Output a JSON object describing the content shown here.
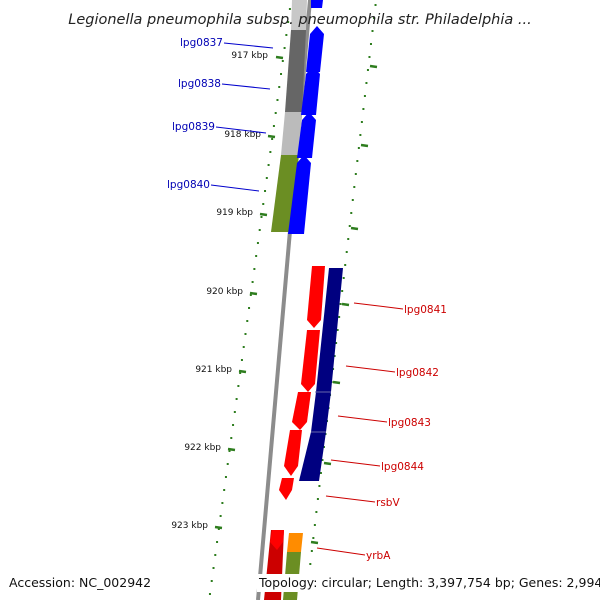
{
  "title": "Legionella pneumophila subsp. pneumophila str. Philadelphia ...",
  "accession": "Accession: NC_002942",
  "topology": "Topology: circular; Length: 3,397,754 bp; Genes: 2,994",
  "colors": {
    "forward_gene": "#0000ff",
    "reverse_gene": "#ff0000",
    "reverse_gene_dark": "#000080",
    "gc_dark": "#666666",
    "gc_light": "#bbbbbb",
    "gc_green": "#6b8e23",
    "gc_orange": "#ff8c00",
    "tick_green": "#2e7d1e",
    "backbone": "#888888"
  },
  "kbp_ticks": [
    "917 kbp",
    "918 kbp",
    "919 kbp",
    "920 kbp",
    "921 kbp",
    "922 kbp",
    "923 kbp"
  ],
  "genes_left": [
    "lpg0837",
    "lpg0838",
    "lpg0839",
    "lpg0840"
  ],
  "genes_right": [
    "lpg0841",
    "lpg0842",
    "lpg0843",
    "lpg0844",
    "rsbV",
    "yrbA"
  ]
}
